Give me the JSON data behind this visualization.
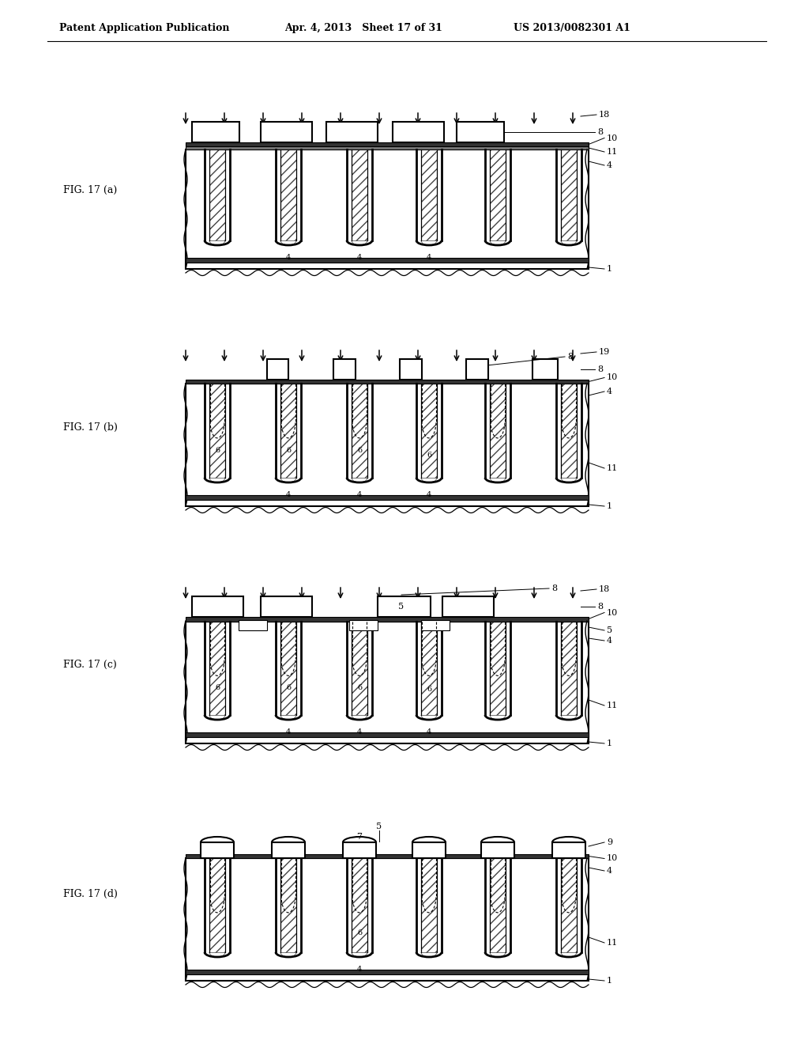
{
  "header_left": "Patent Application Publication",
  "header_mid": "Apr. 4, 2013   Sheet 17 of 31",
  "header_right": "US 2013/0082301 A1",
  "bg_color": "#ffffff",
  "line_color": "#000000",
  "fig_a_label": "FIG. 17 (a)",
  "fig_b_label": "FIG. 17 (b)",
  "fig_c_label": "FIG. 17 (c)",
  "fig_d_label": "FIG. 17 (d)"
}
